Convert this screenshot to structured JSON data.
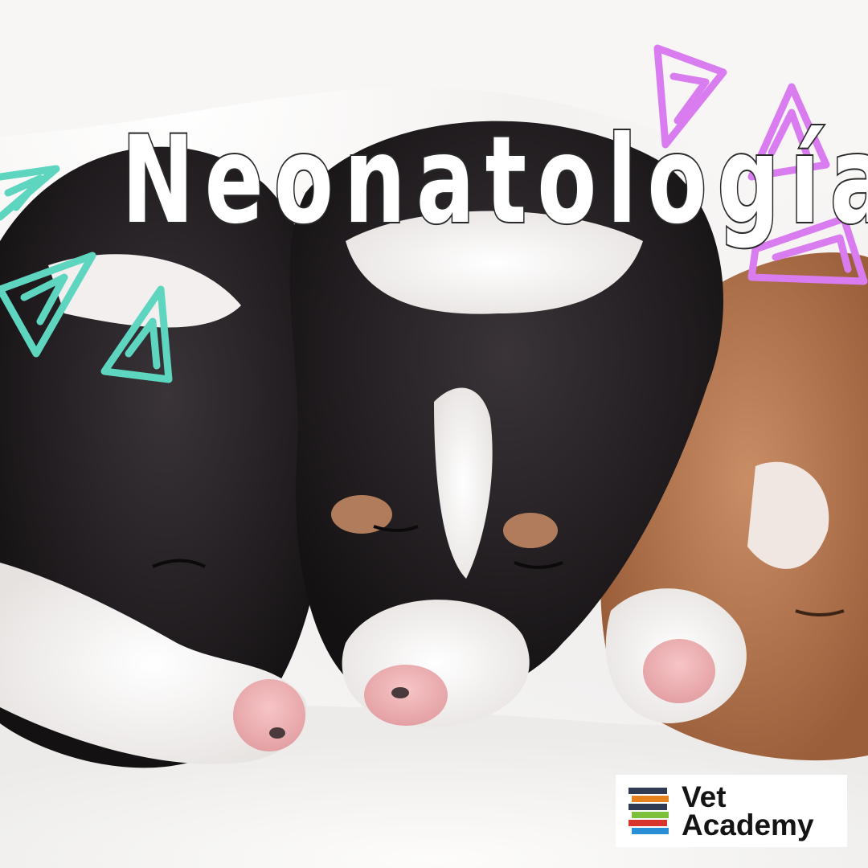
{
  "title": "Neonatología",
  "logo": {
    "line1": "Vet",
    "line2": "Academy"
  },
  "colors": {
    "teal_doodles": "#5ed6bf",
    "pink_doodles": "#d97cf0",
    "title_fill": "#ffffff",
    "title_outline": "#2a2a2a",
    "logo_background": "#ffffff"
  },
  "photo_subject": "three newborn puppies sleeping on a white blanket"
}
